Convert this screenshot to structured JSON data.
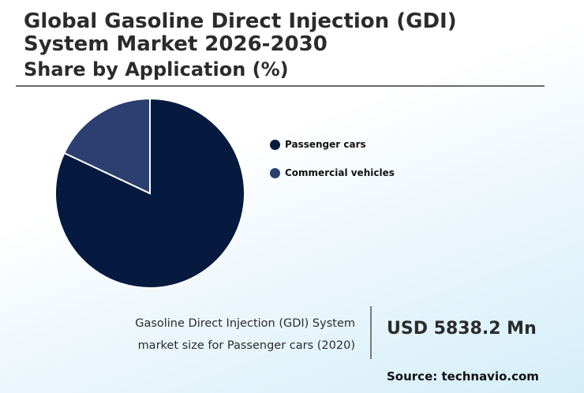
{
  "header": {
    "title": "Global Gasoline Direct Injection (GDI) System Market 2026-2030",
    "subtitle": "Share by Application (%)"
  },
  "chart_data": {
    "type": "pie",
    "title": "Global Gasoline Direct Injection (GDI) System Market 2026-2030",
    "subtitle": "Share by Application (%)",
    "categories": [
      "Passenger cars",
      "Commercial vehicles"
    ],
    "values": [
      82,
      18
    ],
    "colors": [
      "#061a40",
      "#2b4070"
    ],
    "legend_position": "right"
  },
  "stat": {
    "line1": "Gasoline Direct Injection (GDI) System",
    "line2": "market size for Passenger cars (2020)",
    "value": "USD 5838.2 Mn"
  },
  "source": "Source: technavio.com"
}
